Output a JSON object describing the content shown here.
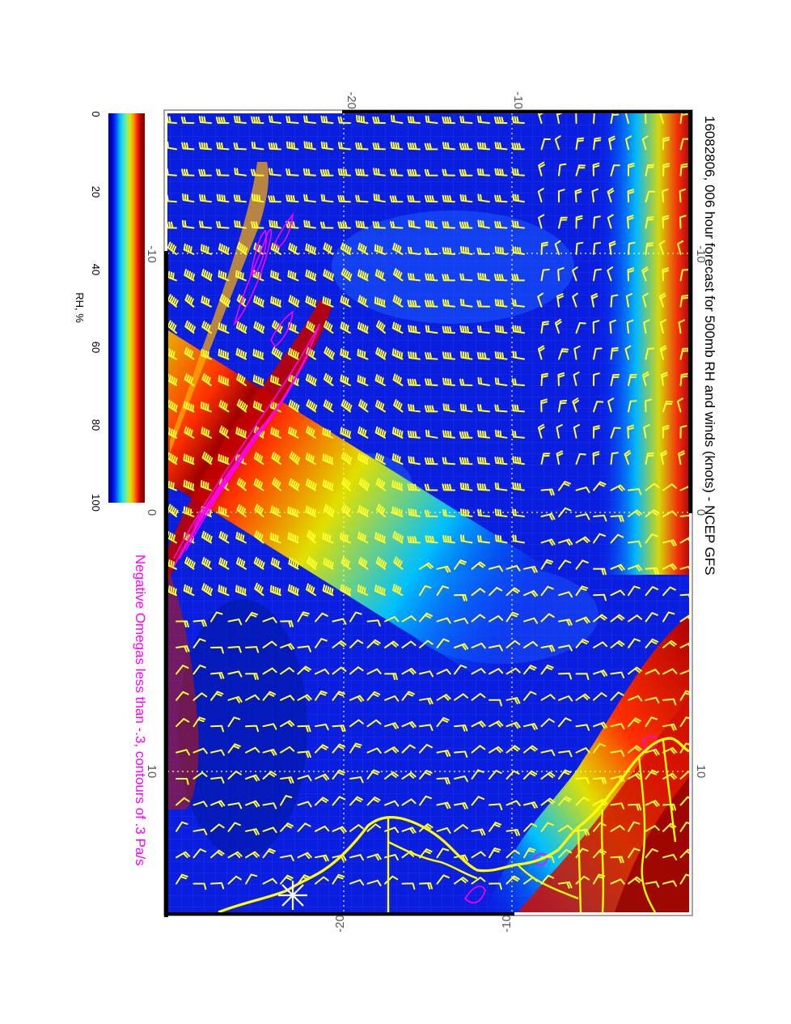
{
  "title": "16082806, 006 hour forecast for 500mb RH and winds (knots) - NCEP GFS",
  "subtitle": "Negative Omegas less than -.3, contours of .3 Pa/s",
  "colorbar": {
    "label": "RH, %",
    "ticks": [
      "0",
      "20",
      "40",
      "60",
      "80",
      "100"
    ],
    "stops": [
      "#00007f",
      "#0000d0",
      "#0040ff",
      "#00b0ff",
      "#30e0e0",
      "#80f080",
      "#e0e000",
      "#ff9000",
      "#ff2000",
      "#a00000",
      "#7f0000"
    ]
  },
  "axes": {
    "top": [
      "-20",
      "-10"
    ],
    "bottom": [
      "-20",
      "-10"
    ],
    "left": [
      "-10",
      "0",
      "10"
    ],
    "right": [
      "-10",
      "0",
      "10"
    ]
  },
  "colors": {
    "wind_barbs": "#ffff30",
    "omega_contours": "#ff00ff",
    "coastline": "#ffff00",
    "grid": "#ffff80",
    "station_marker": "#ffffff"
  }
}
